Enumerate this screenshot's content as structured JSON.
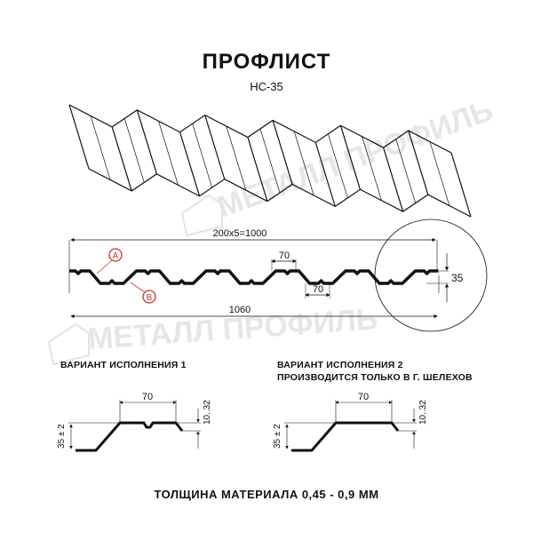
{
  "title": "ПРОФЛИСТ",
  "subtitle": "НС-35",
  "watermark": "МЕТАЛЛ ПРОФИЛЬ",
  "main_profile": {
    "pitch_label": "200x5=1000",
    "total_width_label": "1060",
    "top_flat_label": "70",
    "bottom_flat_label": "70",
    "height_label": "35",
    "marker_a": "A",
    "marker_b": "B",
    "marker_color": "#c0392b"
  },
  "variant1": {
    "caption": "ВАРИАНТ ИСПОЛНЕНИЯ 1",
    "width_label": "70",
    "height_label": "35 ± 2",
    "edge_label": "10..32"
  },
  "variant2": {
    "caption_line1": "ВАРИАНТ ИСПОЛНЕНИЯ 2",
    "caption_line2": "ПРОИЗВОДИТСЯ ТОЛЬКО В Г. ШЕЛЕХОВ",
    "width_label": "70",
    "height_label": "35 ± 2",
    "edge_label": "10..32"
  },
  "footer": "ТОЛЩИНА МАТЕРИАЛА 0,45 - 0,9 ММ"
}
